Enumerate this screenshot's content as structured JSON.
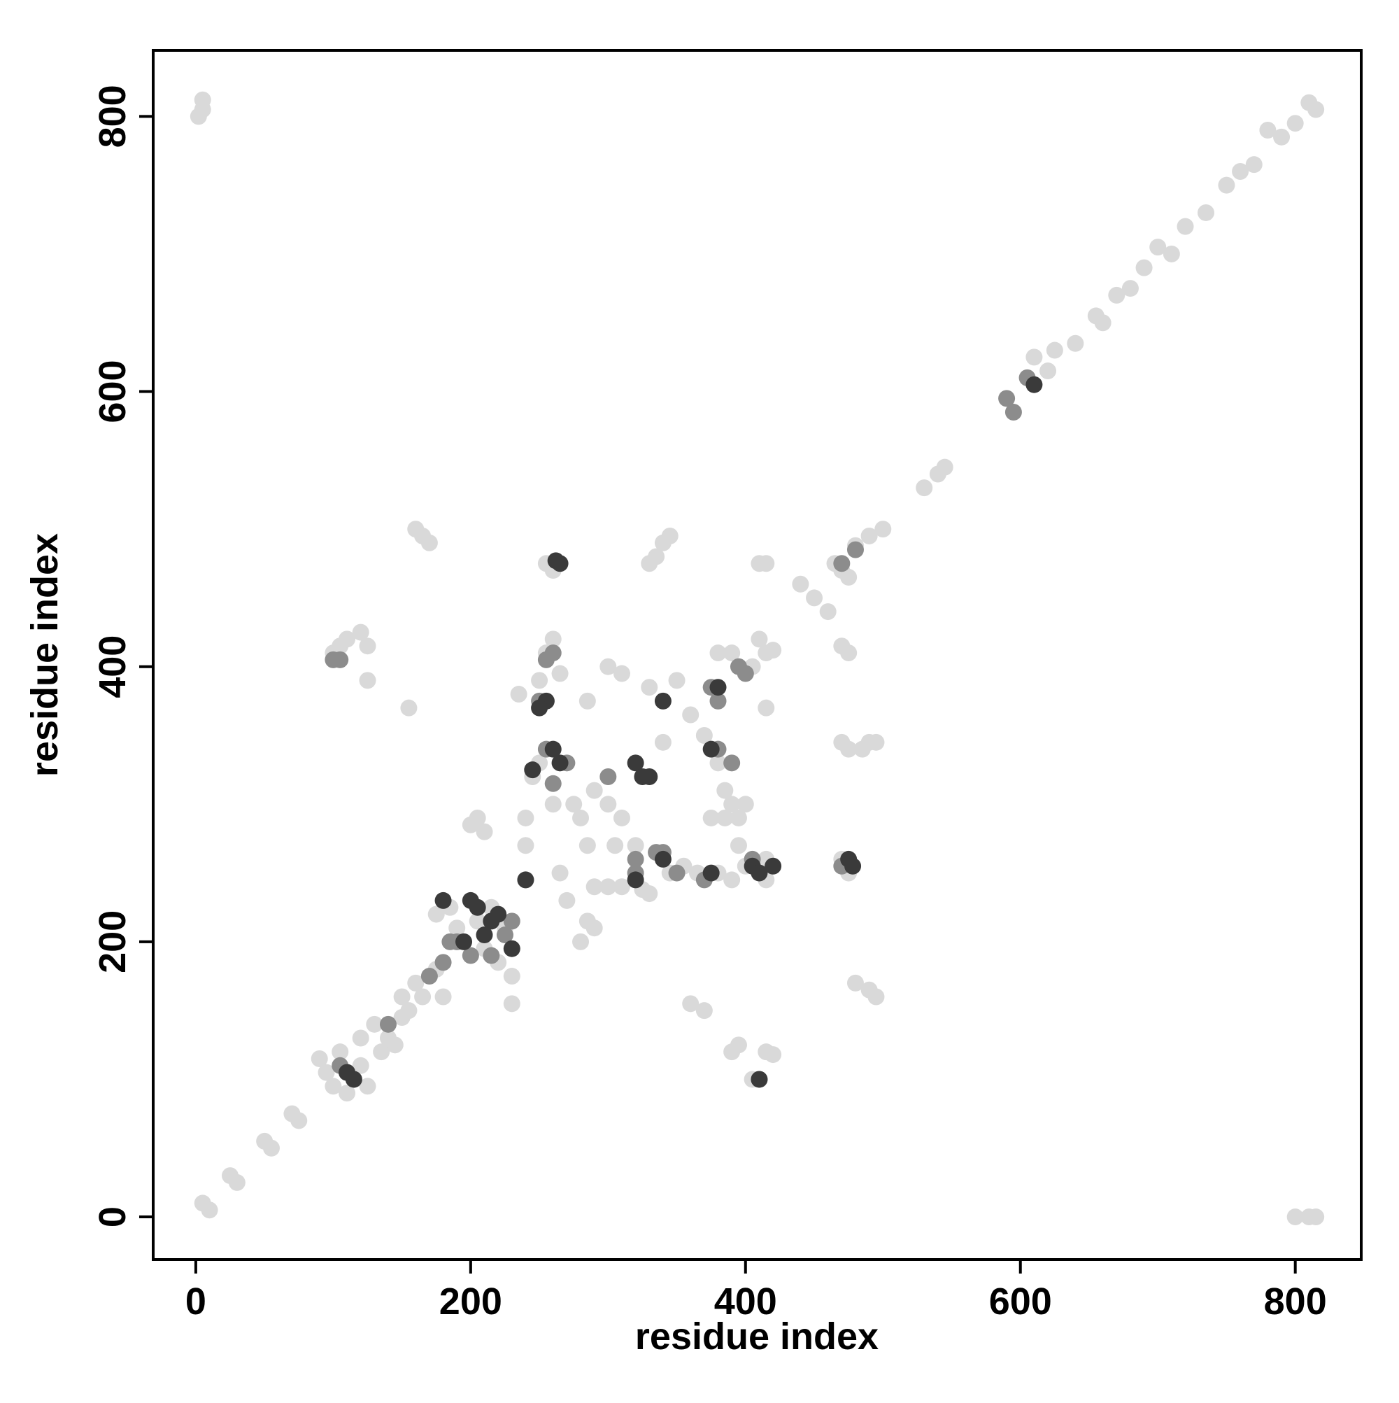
{
  "chart_data": {
    "type": "scatter",
    "xlabel": "residue index",
    "ylabel": "residue index",
    "xlim": [
      -31,
      848
    ],
    "ylim": [
      -31,
      848
    ],
    "xticks": [
      0,
      200,
      400,
      600,
      800
    ],
    "yticks": [
      0,
      200,
      400,
      600,
      800
    ],
    "series": [
      {
        "color": "#d9d9d9",
        "x": [
          5,
          10,
          25,
          30,
          50,
          55,
          70,
          75,
          5,
          2,
          5,
          800,
          810,
          815,
          610,
          620,
          625,
          640,
          655,
          660,
          670,
          680,
          690,
          700,
          710,
          720,
          735,
          750,
          760,
          770,
          780,
          790,
          800,
          810,
          815,
          530,
          540,
          545,
          500,
          490,
          480,
          440,
          450,
          460,
          90,
          95,
          100,
          105,
          110,
          115,
          120,
          125,
          120,
          130,
          140,
          135,
          145,
          150,
          155,
          160,
          165,
          150,
          175,
          180,
          185,
          190,
          200,
          205,
          210,
          215,
          220,
          225,
          230,
          175,
          235,
          240,
          245,
          250,
          255,
          260,
          265,
          270,
          280,
          285,
          290,
          300,
          310,
          320,
          300,
          310,
          330,
          350,
          360,
          370,
          380,
          385,
          390,
          395,
          400,
          340,
          345,
          355,
          365,
          380,
          390,
          400,
          405,
          380,
          390,
          415,
          410,
          415,
          285,
          290,
          300,
          310,
          325,
          330,
          250,
          265,
          275,
          305,
          240,
          260,
          375,
          385,
          395,
          280,
          285,
          290,
          390,
          395,
          405,
          415,
          420,
          370,
          360,
          420,
          415,
          415,
          200,
          205,
          210,
          155,
          160,
          165,
          170,
          100,
          105,
          110,
          120,
          125,
          125,
          480,
          490,
          495,
          470,
          475,
          485,
          490,
          495,
          470,
          475,
          470,
          475,
          465,
          470,
          475,
          255,
          260,
          335,
          340,
          345,
          410,
          415,
          330,
          230
        ],
        "values": [
          10,
          5,
          30,
          25,
          55,
          50,
          75,
          70,
          805,
          800,
          812,
          0,
          0,
          0,
          625,
          615,
          630,
          635,
          655,
          650,
          670,
          675,
          690,
          705,
          700,
          720,
          730,
          750,
          760,
          765,
          790,
          785,
          795,
          810,
          805,
          530,
          540,
          545,
          500,
          495,
          488,
          460,
          450,
          440,
          115,
          105,
          95,
          120,
          90,
          100,
          110,
          95,
          130,
          140,
          130,
          120,
          125,
          145,
          150,
          170,
          160,
          160,
          220,
          160,
          225,
          210,
          230,
          215,
          195,
          225,
          185,
          210,
          175,
          180,
          380,
          270,
          320,
          390,
          410,
          300,
          250,
          230,
          290,
          270,
          310,
          300,
          290,
          270,
          400,
          395,
          385,
          390,
          365,
          350,
          330,
          310,
          300,
          290,
          300,
          345,
          250,
          255,
          250,
          250,
          245,
          255,
          400,
          410,
          410,
          410,
          420,
          370,
          375,
          240,
          240,
          240,
          238,
          235,
          330,
          395,
          300,
          270,
          290,
          420,
          290,
          290,
          270,
          200,
          215,
          210,
          120,
          125,
          100,
          120,
          118,
          150,
          155,
          412,
          260,
          245,
          285,
          290,
          280,
          370,
          500,
          495,
          490,
          410,
          415,
          420,
          425,
          415,
          390,
          170,
          165,
          160,
          345,
          340,
          340,
          345,
          345,
          415,
          410,
          260,
          250,
          475,
          470,
          465,
          475,
          470,
          480,
          490,
          495,
          475,
          475,
          475,
          155
        ]
      },
      {
        "color": "#8c8c8c",
        "x": [
          590,
          595,
          605,
          105,
          110,
          140,
          180,
          190,
          200,
          215,
          225,
          230,
          250,
          255,
          260,
          270,
          240,
          300,
          320,
          335,
          375,
          380,
          380,
          390,
          395,
          400,
          405,
          370,
          350,
          320,
          100,
          105,
          410,
          480,
          470,
          470,
          255,
          260,
          170,
          185,
          340
        ],
        "values": [
          595,
          585,
          610,
          110,
          105,
          140,
          185,
          200,
          190,
          190,
          205,
          215,
          375,
          340,
          315,
          330,
          245,
          320,
          260,
          265,
          385,
          375,
          340,
          330,
          400,
          395,
          260,
          245,
          250,
          250,
          405,
          405,
          100,
          485,
          475,
          255,
          405,
          410,
          175,
          200,
          265
        ]
      },
      {
        "color": "#3a3a3a",
        "x": [
          610,
          115,
          180,
          195,
          200,
          210,
          220,
          230,
          205,
          215,
          255,
          260,
          265,
          320,
          325,
          330,
          240,
          320,
          340,
          375,
          380,
          375,
          265,
          262,
          475,
          478,
          340,
          405,
          410,
          250,
          245,
          410,
          110,
          420
        ],
        "values": [
          605,
          100,
          230,
          200,
          230,
          205,
          220,
          195,
          225,
          215,
          375,
          340,
          330,
          330,
          320,
          320,
          245,
          245,
          260,
          250,
          385,
          340,
          475,
          477,
          260,
          255,
          375,
          255,
          250,
          370,
          325,
          100,
          105,
          255
        ]
      }
    ]
  }
}
